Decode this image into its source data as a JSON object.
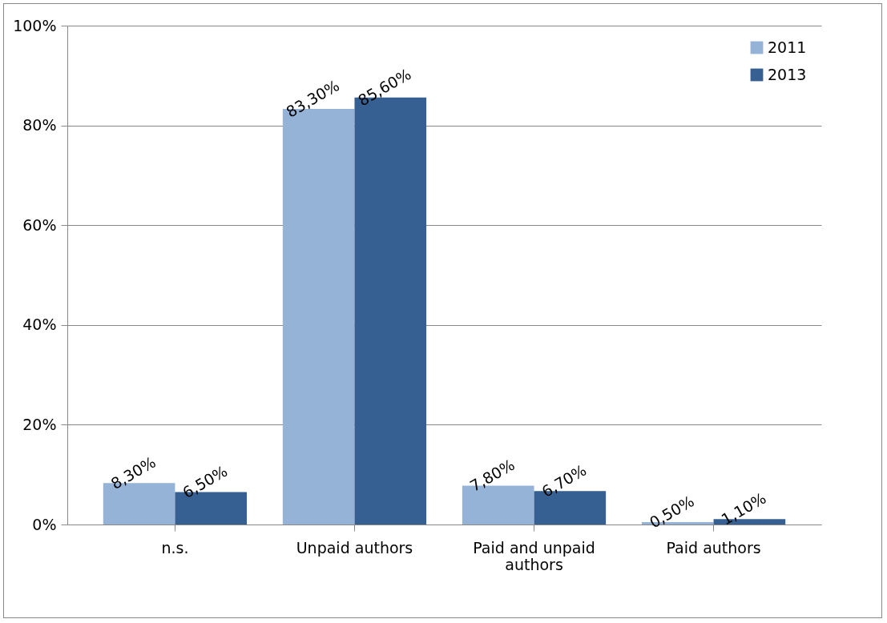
{
  "chart_data": {
    "type": "bar",
    "categories": [
      "n.s.",
      "Unpaid authors",
      "Paid and unpaid authors",
      "Paid authors"
    ],
    "series": [
      {
        "name": "2011",
        "color": "#95b3d7",
        "values": [
          8.3,
          83.3,
          7.8,
          0.5
        ],
        "value_labels": [
          "8,30%",
          "83,30%",
          "7,80%",
          "0,50%"
        ]
      },
      {
        "name": "2013",
        "color": "#376092",
        "values": [
          6.5,
          85.6,
          6.7,
          1.1
        ],
        "value_labels": [
          "6,50%",
          "85,60%",
          "6,70%",
          "1,10%"
        ]
      }
    ],
    "ylim": [
      0,
      100
    ],
    "yticks": [
      {
        "value": 0,
        "label": "0%"
      },
      {
        "value": 20,
        "label": "20%"
      },
      {
        "value": 40,
        "label": "40%"
      },
      {
        "value": 60,
        "label": "60%"
      },
      {
        "value": 80,
        "label": "80%"
      },
      {
        "value": 100,
        "label": "100%"
      }
    ],
    "grid": "y",
    "legend": "top right"
  }
}
